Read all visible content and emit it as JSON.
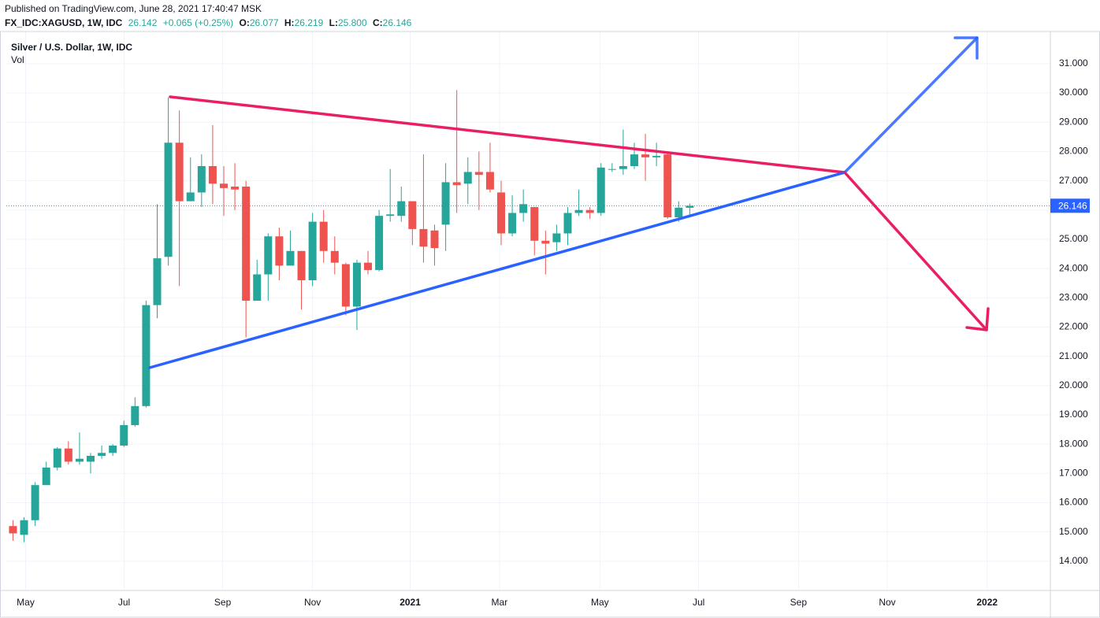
{
  "header": {
    "published": "Published on TradingView.com, June 28, 2021 17:40:47 MSK",
    "symbol": "FX_IDC:XAGUSD, 1W, IDC",
    "price": "26.142",
    "change": "+0.065 (+0.25%)",
    "ohlc": [
      {
        "label": "O:",
        "value": "26.077"
      },
      {
        "label": "H:",
        "value": "26.219"
      },
      {
        "label": "L:",
        "value": "25.800"
      },
      {
        "label": "C:",
        "value": "26.146"
      }
    ]
  },
  "chart_data": {
    "type": "candlestick",
    "title": "Silver / U.S. Dollar, 1W, IDC",
    "subtitle": "Vol",
    "up_color": "#26a69a",
    "down_color": "#ef5350",
    "grid": true,
    "x": [
      0,
      1,
      2,
      3,
      4,
      5,
      6,
      7,
      8,
      9,
      10,
      11,
      12,
      13,
      14,
      15,
      16,
      17,
      18,
      19,
      20,
      21,
      22,
      23,
      24,
      25,
      26,
      27,
      28,
      29,
      30,
      31,
      32,
      33,
      34,
      35,
      36,
      37,
      38,
      39,
      40,
      41,
      42,
      43,
      44,
      45,
      46,
      47,
      48,
      49,
      50,
      51,
      52,
      53,
      54,
      55,
      56,
      57,
      58,
      59,
      60,
      61
    ],
    "open": [
      15.2,
      14.9,
      15.4,
      16.6,
      17.2,
      17.85,
      17.4,
      17.4,
      17.6,
      17.7,
      17.95,
      18.65,
      19.3,
      22.75,
      24.4,
      28.3,
      26.3,
      26.6,
      27.5,
      26.9,
      26.8,
      26.8,
      22.9,
      23.8,
      25.1,
      24.1,
      24.6,
      23.6,
      25.6,
      24.6,
      24.15,
      22.7,
      24.2,
      23.95,
      25.8,
      25.8,
      26.3,
      25.35,
      25.3,
      25.5,
      26.95,
      26.9,
      27.3,
      27.3,
      26.6,
      25.2,
      25.9,
      26.1,
      24.95,
      24.9,
      25.2,
      25.9,
      26.0,
      25.9,
      27.4,
      27.4,
      27.5,
      27.9,
      27.8,
      27.9,
      25.75,
      26.077
    ],
    "high": [
      15.4,
      15.5,
      16.7,
      17.4,
      17.9,
      18.1,
      18.4,
      17.7,
      17.95,
      18.0,
      18.8,
      19.6,
      22.9,
      26.2,
      29.85,
      29.4,
      27.8,
      27.9,
      28.9,
      27.5,
      27.6,
      27.0,
      24.3,
      25.2,
      25.4,
      25.3,
      24.6,
      25.9,
      26.0,
      25.1,
      24.2,
      24.3,
      24.6,
      26.0,
      27.4,
      26.8,
      26.3,
      27.9,
      25.5,
      27.6,
      30.1,
      27.8,
      28.0,
      28.3,
      27.0,
      26.5,
      26.7,
      26.1,
      25.3,
      25.5,
      26.1,
      26.7,
      26.1,
      27.6,
      27.6,
      28.75,
      28.3,
      28.6,
      28.3,
      28.0,
      26.3,
      26.219
    ],
    "low": [
      14.7,
      14.65,
      15.2,
      16.6,
      17.1,
      17.3,
      17.3,
      17.0,
      17.5,
      17.6,
      17.9,
      18.6,
      19.25,
      22.3,
      24.1,
      23.4,
      26.3,
      26.1,
      26.2,
      25.8,
      26.0,
      21.65,
      22.9,
      22.9,
      23.6,
      24.1,
      22.6,
      23.4,
      24.2,
      23.8,
      22.4,
      21.9,
      23.8,
      23.9,
      25.6,
      25.6,
      24.8,
      24.2,
      24.1,
      24.6,
      25.9,
      26.2,
      26.0,
      26.6,
      24.8,
      25.1,
      25.6,
      24.45,
      23.8,
      24.6,
      24.8,
      25.8,
      25.7,
      25.8,
      27.3,
      27.2,
      27.4,
      27.0,
      27.5,
      25.7,
      25.6,
      25.8
    ],
    "close": [
      14.95,
      15.4,
      16.6,
      17.2,
      17.85,
      17.4,
      17.5,
      17.6,
      17.7,
      17.95,
      18.65,
      19.3,
      22.75,
      24.35,
      28.3,
      26.3,
      26.6,
      27.5,
      26.9,
      26.75,
      26.7,
      22.9,
      23.8,
      25.1,
      24.1,
      24.6,
      23.6,
      25.6,
      24.6,
      24.2,
      22.7,
      24.2,
      23.95,
      25.8,
      25.85,
      26.3,
      25.35,
      24.75,
      24.7,
      26.95,
      26.85,
      27.3,
      27.2,
      26.7,
      25.2,
      25.9,
      26.2,
      24.95,
      24.85,
      25.2,
      25.9,
      26.0,
      25.9,
      27.45,
      27.4,
      27.5,
      27.9,
      27.8,
      27.85,
      25.75,
      26.08,
      26.146
    ],
    "last_price": 26.146,
    "xlim": [
      -0.6,
      93.5
    ],
    "xticks": [
      {
        "value": 1.14,
        "label": "May"
      },
      {
        "value": 10.02,
        "label": "Jul"
      },
      {
        "value": 18.9,
        "label": "Sep"
      },
      {
        "value": 27.0,
        "label": "Nov"
      },
      {
        "value": 35.8,
        "label": "2021"
      },
      {
        "value": 43.85,
        "label": "Mar"
      },
      {
        "value": 52.9,
        "label": "May"
      },
      {
        "value": 61.8,
        "label": "Jul"
      },
      {
        "value": 70.8,
        "label": "Sep"
      },
      {
        "value": 78.8,
        "label": "Nov"
      },
      {
        "value": 87.8,
        "label": "2022"
      }
    ],
    "ylim": [
      13.0,
      32.1
    ],
    "yticks": [
      {
        "value": 14,
        "label": "14.000"
      },
      {
        "value": 15,
        "label": "15.000"
      },
      {
        "value": 16,
        "label": "16.000"
      },
      {
        "value": 17,
        "label": "17.000"
      },
      {
        "value": 18,
        "label": "18.000"
      },
      {
        "value": 19,
        "label": "19.000"
      },
      {
        "value": 20,
        "label": "20.000"
      },
      {
        "value": 21,
        "label": "21.000"
      },
      {
        "value": 22,
        "label": "22.000"
      },
      {
        "value": 23,
        "label": "23.000"
      },
      {
        "value": 24,
        "label": "24.000"
      },
      {
        "value": 25,
        "label": "25.000"
      },
      {
        "value": 26,
        "label": "26.000"
      },
      {
        "value": 27,
        "label": "27.000"
      },
      {
        "value": 28,
        "label": "28.000"
      },
      {
        "value": 29,
        "label": "29.000"
      },
      {
        "value": 30,
        "label": "30.000"
      },
      {
        "value": 31,
        "label": "31.000"
      }
    ]
  }
}
